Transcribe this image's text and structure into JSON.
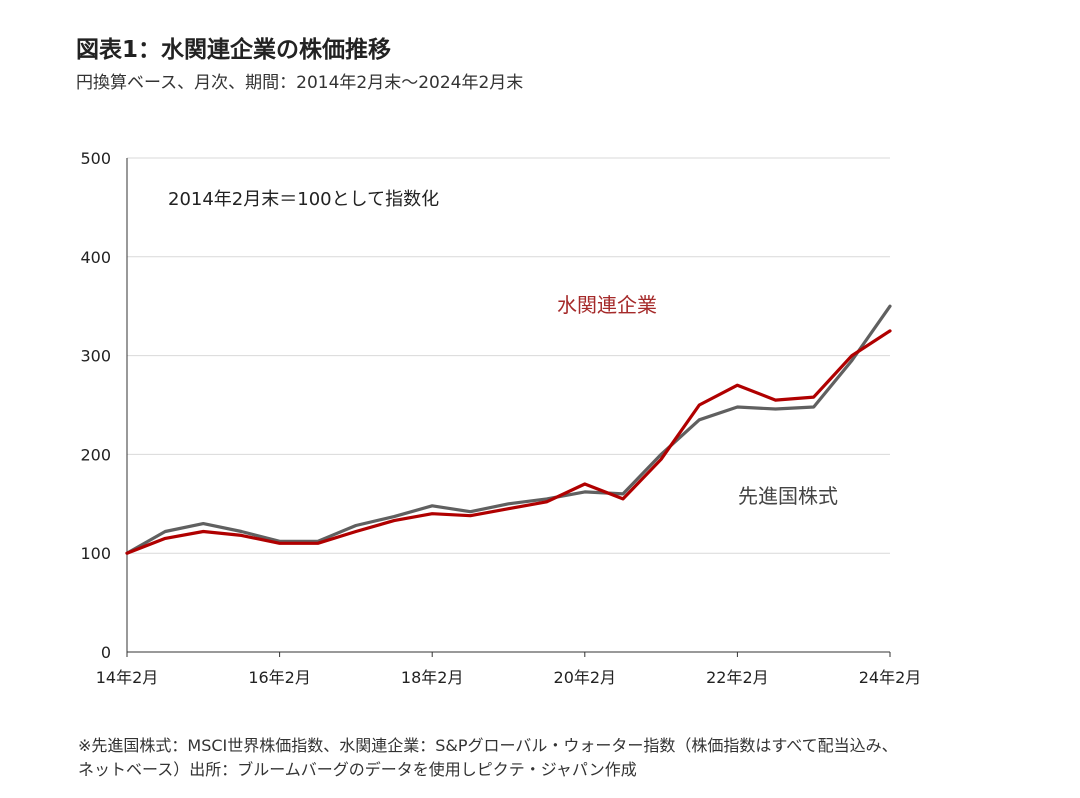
{
  "title": "図表1：水関連企業の株価推移",
  "subtitle": "円換算ベース、月次、期間：2014年2月末～2024年2月末",
  "notes": [
    "※先進国株式：MSCI世界株価指数、水関連企業：S&Pグローバル・ウォーター指数（株価指数はすべて配当込み、",
    "ネットベース）出所：ブルームバーグのデータを使用しピクテ・ジャパン作成"
  ],
  "chart_data": {
    "type": "line",
    "annotation": "2014年2月末＝100として指数化",
    "ylim": [
      0,
      500
    ],
    "y_ticks": [
      0,
      100,
      200,
      300,
      400,
      500
    ],
    "x_range": [
      "2014-02",
      "2024-02"
    ],
    "x_ticks": [
      "14年2月",
      "16年2月",
      "18年2月",
      "20年2月",
      "22年2月",
      "24年2月"
    ],
    "grid": "horizontal",
    "series": [
      {
        "name": "水関連企業",
        "color": "#b00000",
        "x": [
          "2014-02",
          "2014-08",
          "2015-02",
          "2015-08",
          "2016-02",
          "2016-08",
          "2017-02",
          "2017-08",
          "2018-02",
          "2018-08",
          "2019-02",
          "2019-08",
          "2020-02",
          "2020-08",
          "2021-02",
          "2021-08",
          "2022-02",
          "2022-08",
          "2023-02",
          "2023-08",
          "2024-02"
        ],
        "values": [
          100,
          115,
          122,
          118,
          110,
          110,
          122,
          133,
          140,
          138,
          145,
          152,
          170,
          155,
          195,
          250,
          270,
          255,
          258,
          300,
          325
        ]
      },
      {
        "name": "先進国株式",
        "color": "#606060",
        "x": [
          "2014-02",
          "2014-08",
          "2015-02",
          "2015-08",
          "2016-02",
          "2016-08",
          "2017-02",
          "2017-08",
          "2018-02",
          "2018-08",
          "2019-02",
          "2019-08",
          "2020-02",
          "2020-08",
          "2021-02",
          "2021-08",
          "2022-02",
          "2022-08",
          "2023-02",
          "2023-08",
          "2024-02"
        ],
        "values": [
          100,
          122,
          130,
          122,
          112,
          112,
          128,
          137,
          148,
          142,
          150,
          155,
          162,
          160,
          200,
          235,
          248,
          246,
          248,
          295,
          350
        ]
      }
    ]
  }
}
